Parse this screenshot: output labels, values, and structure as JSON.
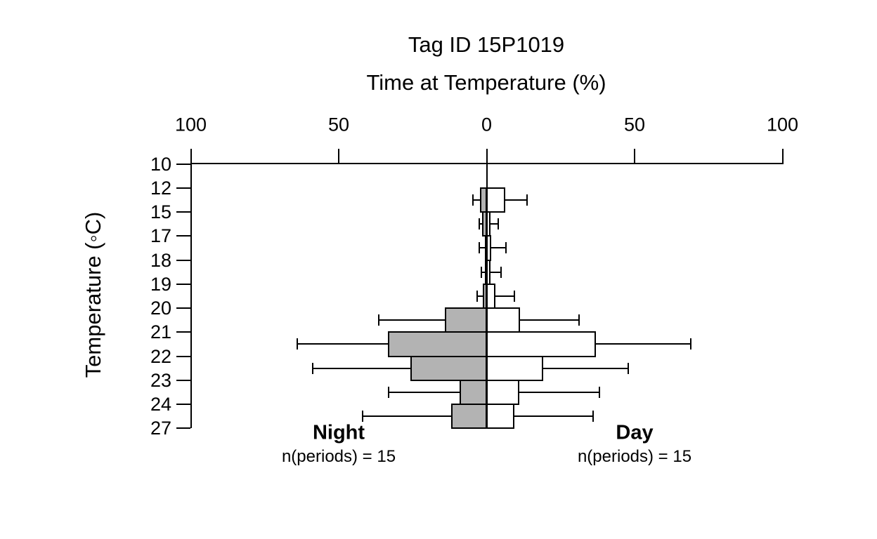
{
  "title": {
    "line1": "Tag ID 15P1019",
    "line2": "Time at Temperature (%)"
  },
  "axes": {
    "y_label": "Temperature (◦C)",
    "y_tick_labels": [
      "10",
      "12",
      "15",
      "17",
      "18",
      "19",
      "20",
      "21",
      "22",
      "23",
      "24",
      "27"
    ],
    "x_tick_labels": [
      "100",
      "50",
      "0",
      "50",
      "100"
    ],
    "x_tick_values": [
      -100,
      -50,
      0,
      50,
      100
    ]
  },
  "legend": {
    "night_label": "Night",
    "night_n": "n(periods) = 15",
    "day_label": "Day",
    "day_n": "n(periods) = 15"
  },
  "colors": {
    "night_fill": "#b3b3b3",
    "day_fill": "#ffffff",
    "stroke": "#000000",
    "background": "#ffffff"
  },
  "chart_data": {
    "type": "bar",
    "variant": "diverging-horizontal-with-whiskers",
    "title": "Tag ID 15P1019",
    "subtitle": "Time at Temperature (%)",
    "xlabel": "Time at Temperature (%)",
    "ylabel": "Temperature (◦C)",
    "x_ticks_pct": [
      -100,
      -50,
      0,
      50,
      100
    ],
    "x_range_each_side": [
      0,
      100
    ],
    "grid": false,
    "temperature_bin_edges": [
      10,
      12,
      15,
      17,
      18,
      19,
      20,
      21,
      22,
      23,
      24,
      27
    ],
    "bin_ranges": [
      "10-12",
      "12-15",
      "15-17",
      "17-18",
      "18-19",
      "19-20",
      "20-21",
      "21-22",
      "22-23",
      "23-24",
      "24-27"
    ],
    "series": [
      {
        "name": "Night",
        "side": "left",
        "fill": "#b3b3b3",
        "n_periods": 15,
        "values_pct": [
          0,
          2.3,
          1.5,
          0.6,
          0.5,
          1.4,
          14.1,
          33.4,
          25.8,
          9.1,
          11.9
        ],
        "whisker_pct": [
          0,
          4.6,
          2.6,
          2.4,
          1.9,
          3.1,
          36.5,
          63.9,
          58.8,
          33.2,
          41.9
        ]
      },
      {
        "name": "Day",
        "side": "right",
        "fill": "#ffffff",
        "n_periods": 15,
        "values_pct": [
          0,
          6.3,
          1.4,
          1.6,
          1.3,
          3.0,
          11.3,
          36.9,
          19.2,
          11.1,
          9.3
        ],
        "whisker_pct": [
          0,
          13.7,
          4.0,
          6.5,
          4.9,
          9.5,
          31.2,
          69.1,
          47.9,
          38.2,
          36.0
        ]
      }
    ]
  }
}
